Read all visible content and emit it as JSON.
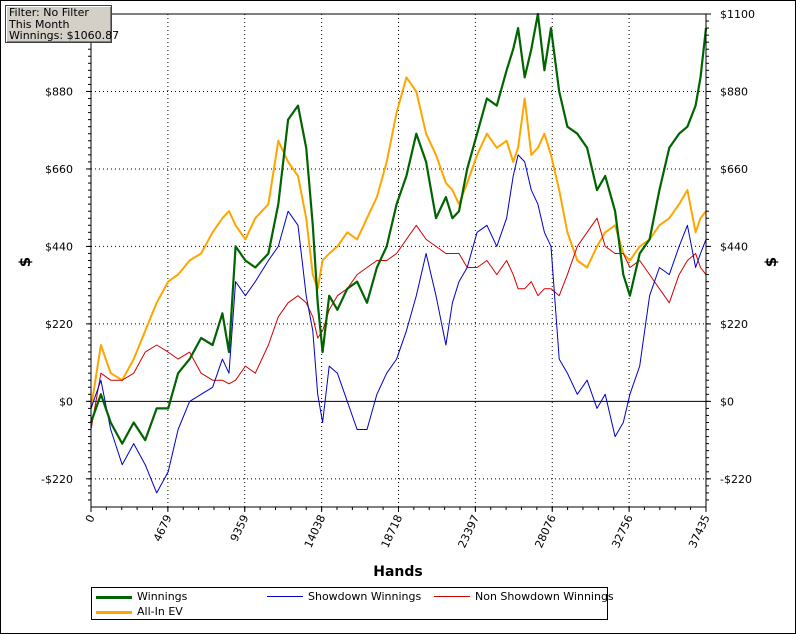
{
  "filter_box": {
    "line1": "Filter: No Filter",
    "line2": "This Month",
    "line3": "Winnings: $1060.87"
  },
  "chart_data": {
    "type": "line",
    "xlabel": "Hands",
    "ylabel_left": "$",
    "ylabel_right": "$",
    "xlim": [
      0,
      37435
    ],
    "ylim": [
      -300,
      1100
    ],
    "x_ticks": [
      0,
      4679,
      9359,
      14038,
      18718,
      23397,
      28076,
      32756,
      37435
    ],
    "x_tick_labels": [
      "0",
      "4679",
      "9359",
      "14038",
      "18718",
      "23397",
      "28076",
      "32756",
      "37435"
    ],
    "y_ticks": [
      -220,
      0,
      220,
      440,
      660,
      880
    ],
    "y_tick_labels_left": [
      "-$220",
      "$0",
      "$220",
      "$440",
      "$660",
      "$880"
    ],
    "y_tick_labels_right": [
      "-$220",
      "$0",
      "$220",
      "$440",
      "$660",
      "$880",
      "$1100"
    ],
    "y_tick_right_values": [
      -220,
      0,
      220,
      440,
      660,
      880,
      1100
    ],
    "grid": true,
    "legend_position": "bottom",
    "series": [
      {
        "name": "Winnings",
        "color": "#006400",
        "x": [
          0,
          600,
          1200,
          1900,
          2600,
          3300,
          4000,
          4700,
          5300,
          6000,
          6700,
          7400,
          8000,
          8400,
          8800,
          9400,
          10000,
          10800,
          11400,
          12000,
          12600,
          13100,
          13500,
          13800,
          14100,
          14500,
          15000,
          15600,
          16200,
          16800,
          17400,
          18000,
          18600,
          19200,
          19800,
          20400,
          21000,
          21600,
          22000,
          22400,
          22900,
          23500,
          24100,
          24700,
          25300,
          25700,
          26000,
          26400,
          26800,
          27200,
          27600,
          28000,
          28500,
          29000,
          29600,
          30200,
          30800,
          31300,
          31900,
          32400,
          32800,
          33400,
          34000,
          34600,
          35200,
          35800,
          36300,
          36800,
          37100,
          37435
        ],
        "values": [
          -60,
          20,
          -60,
          -120,
          -60,
          -110,
          -20,
          -20,
          80,
          120,
          180,
          160,
          250,
          140,
          440,
          400,
          380,
          420,
          560,
          800,
          840,
          720,
          500,
          280,
          140,
          300,
          260,
          320,
          340,
          280,
          380,
          440,
          560,
          640,
          760,
          680,
          520,
          580,
          520,
          540,
          660,
          760,
          860,
          840,
          940,
          1000,
          1060,
          920,
          1000,
          1100,
          940,
          1060,
          880,
          780,
          760,
          720,
          600,
          640,
          540,
          360,
          300,
          420,
          460,
          600,
          720,
          760,
          780,
          840,
          920,
          1060
        ]
      },
      {
        "name": "Showdown Winnings",
        "color": "#0000c8",
        "x": [
          0,
          600,
          1200,
          1900,
          2600,
          3300,
          4000,
          4700,
          5300,
          6000,
          6700,
          7400,
          8000,
          8400,
          8800,
          9400,
          10000,
          10800,
          11400,
          12000,
          12600,
          13100,
          13500,
          13800,
          14100,
          14500,
          15000,
          15600,
          16200,
          16800,
          17400,
          18000,
          18600,
          19200,
          19800,
          20400,
          21000,
          21600,
          22000,
          22400,
          22900,
          23500,
          24100,
          24700,
          25300,
          25700,
          26000,
          26400,
          26800,
          27200,
          27600,
          28000,
          28500,
          29000,
          29600,
          30200,
          30800,
          31300,
          31900,
          32400,
          32800,
          33400,
          34000,
          34600,
          35200,
          35800,
          36300,
          36800,
          37100,
          37435
        ],
        "values": [
          -20,
          60,
          -80,
          -180,
          -120,
          -180,
          -260,
          -200,
          -80,
          0,
          20,
          40,
          120,
          80,
          340,
          300,
          340,
          400,
          440,
          540,
          500,
          300,
          200,
          20,
          -60,
          100,
          80,
          0,
          -80,
          -80,
          20,
          80,
          120,
          200,
          300,
          420,
          300,
          160,
          280,
          340,
          380,
          480,
          500,
          440,
          520,
          640,
          700,
          680,
          600,
          560,
          480,
          440,
          120,
          80,
          20,
          60,
          -20,
          20,
          -100,
          -60,
          20,
          100,
          300,
          380,
          360,
          440,
          500,
          380,
          420,
          460
        ]
      },
      {
        "name": "Non Showdown Winnings",
        "color": "#d20000",
        "x": [
          0,
          600,
          1200,
          1900,
          2600,
          3300,
          4000,
          4700,
          5300,
          6000,
          6700,
          7400,
          8000,
          8400,
          8800,
          9400,
          10000,
          10800,
          11400,
          12000,
          12600,
          13100,
          13500,
          13800,
          14100,
          14500,
          15000,
          15600,
          16200,
          16800,
          17400,
          18000,
          18600,
          19200,
          19800,
          20400,
          21000,
          21600,
          22000,
          22400,
          22900,
          23500,
          24100,
          24700,
          25300,
          25700,
          26000,
          26400,
          26800,
          27200,
          27600,
          28000,
          28500,
          29000,
          29600,
          30200,
          30800,
          31300,
          31900,
          32400,
          32800,
          33400,
          34000,
          34600,
          35200,
          35800,
          36300,
          36800,
          37100,
          37435
        ],
        "values": [
          -80,
          80,
          60,
          60,
          80,
          140,
          160,
          140,
          120,
          140,
          80,
          60,
          60,
          50,
          60,
          100,
          80,
          160,
          240,
          280,
          300,
          280,
          240,
          180,
          200,
          260,
          300,
          320,
          360,
          380,
          400,
          400,
          420,
          460,
          500,
          460,
          440,
          420,
          420,
          420,
          380,
          380,
          400,
          360,
          400,
          360,
          320,
          320,
          340,
          300,
          320,
          320,
          300,
          360,
          440,
          480,
          520,
          440,
          420,
          420,
          380,
          400,
          360,
          320,
          280,
          360,
          400,
          420,
          380,
          360
        ]
      },
      {
        "name": "All-In EV",
        "color": "#ffa500",
        "x": [
          0,
          600,
          1200,
          1900,
          2600,
          3300,
          4000,
          4700,
          5300,
          6000,
          6700,
          7400,
          8000,
          8400,
          8800,
          9400,
          10000,
          10800,
          11400,
          12000,
          12600,
          13100,
          13500,
          13800,
          14100,
          14500,
          15000,
          15600,
          16200,
          16800,
          17400,
          18000,
          18600,
          19200,
          19800,
          20400,
          21000,
          21600,
          22000,
          22400,
          22900,
          23500,
          24100,
          24700,
          25300,
          25700,
          26000,
          26400,
          26800,
          27200,
          27600,
          28000,
          28500,
          29000,
          29600,
          30200,
          30800,
          31300,
          31900,
          32400,
          32800,
          33400,
          34000,
          34600,
          35200,
          35800,
          36300,
          36800,
          37100,
          37435
        ],
        "values": [
          -20,
          160,
          80,
          60,
          120,
          200,
          280,
          340,
          360,
          400,
          420,
          480,
          520,
          540,
          500,
          460,
          520,
          560,
          740,
          680,
          640,
          520,
          360,
          320,
          400,
          420,
          440,
          480,
          460,
          520,
          580,
          680,
          820,
          920,
          880,
          760,
          700,
          620,
          600,
          560,
          620,
          700,
          760,
          720,
          740,
          680,
          720,
          860,
          700,
          720,
          760,
          700,
          600,
          480,
          400,
          380,
          440,
          480,
          500,
          420,
          400,
          440,
          460,
          500,
          520,
          560,
          600,
          480,
          520,
          540
        ]
      }
    ]
  },
  "legend": {
    "winnings": "Winnings",
    "all_in_ev": "All-In EV",
    "showdown": "Showdown Winnings",
    "non_showdown": "Non Showdown Winnings"
  },
  "colors": {
    "winnings": "#006400",
    "showdown": "#0000c8",
    "non_showdown": "#d20000",
    "all_in_ev": "#ffa500",
    "grid": "#000000",
    "filter_box_bg": "#d4d0c8"
  }
}
